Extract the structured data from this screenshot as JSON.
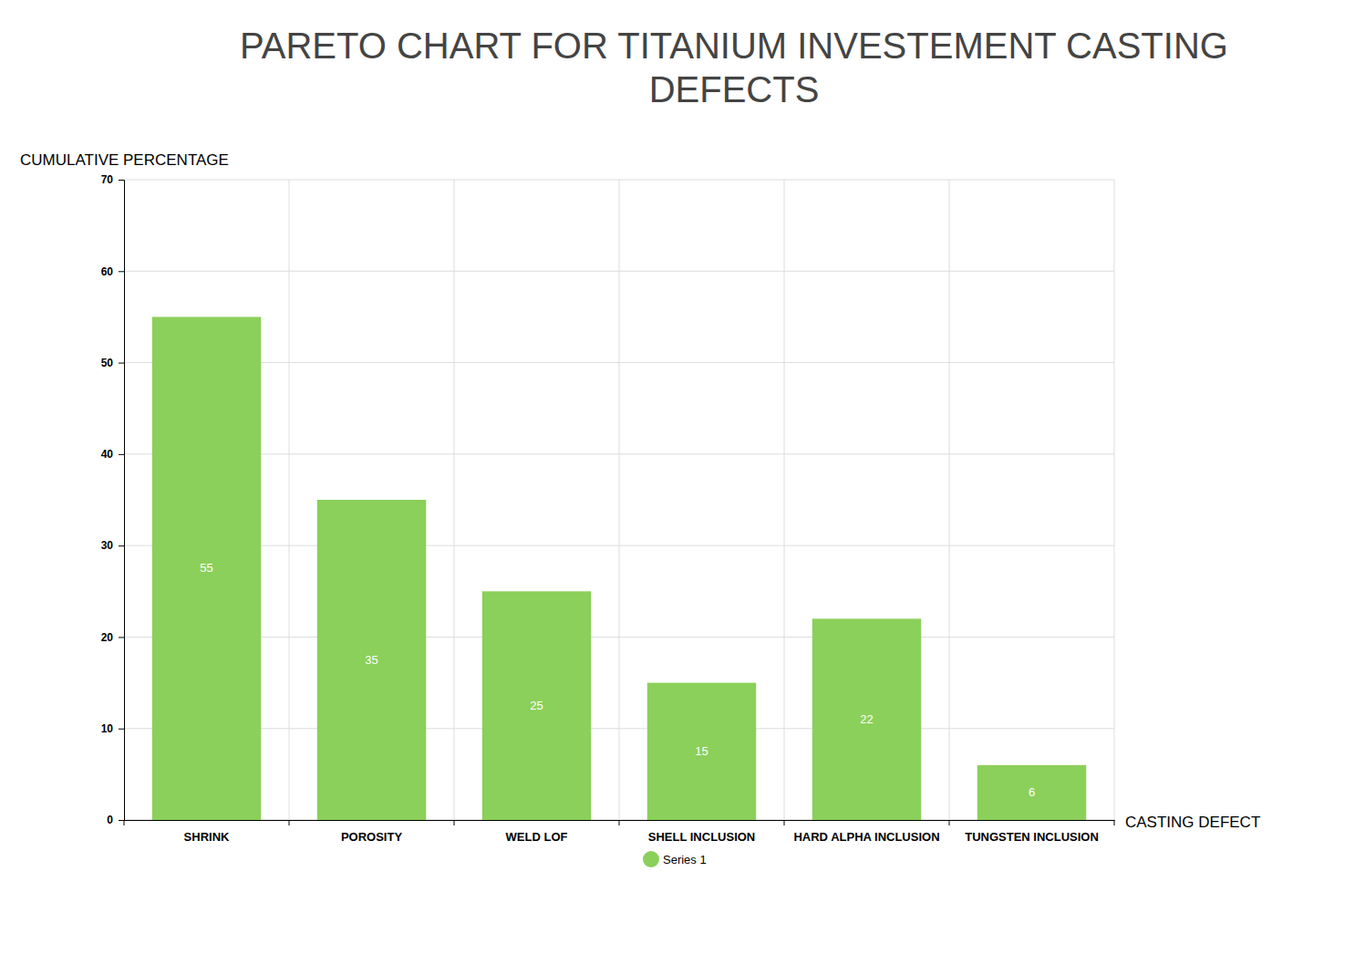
{
  "chart_data": {
    "type": "bar",
    "title": "PARETO CHART FOR TITANIUM INVESTEMENT CASTING DEFECTS",
    "x_label": "CASTING DEFECT",
    "y_label": "CUMULATIVE PERCENTAGE",
    "categories": [
      "SHRINK",
      "POROSITY",
      "WELD LOF",
      "SHELL INCLUSION",
      "HARD ALPHA INCLUSION",
      "TUNGSTEN INCLUSION"
    ],
    "series": [
      {
        "name": "Series 1",
        "color": "#8bd05a",
        "values": [
          55,
          35,
          25,
          15,
          22,
          6
        ]
      }
    ],
    "ylim": [
      0,
      70
    ],
    "yticks": [
      0,
      10,
      20,
      30,
      40,
      50,
      60,
      70
    ],
    "grid": true,
    "data_labels": true,
    "legend": "bottom"
  }
}
